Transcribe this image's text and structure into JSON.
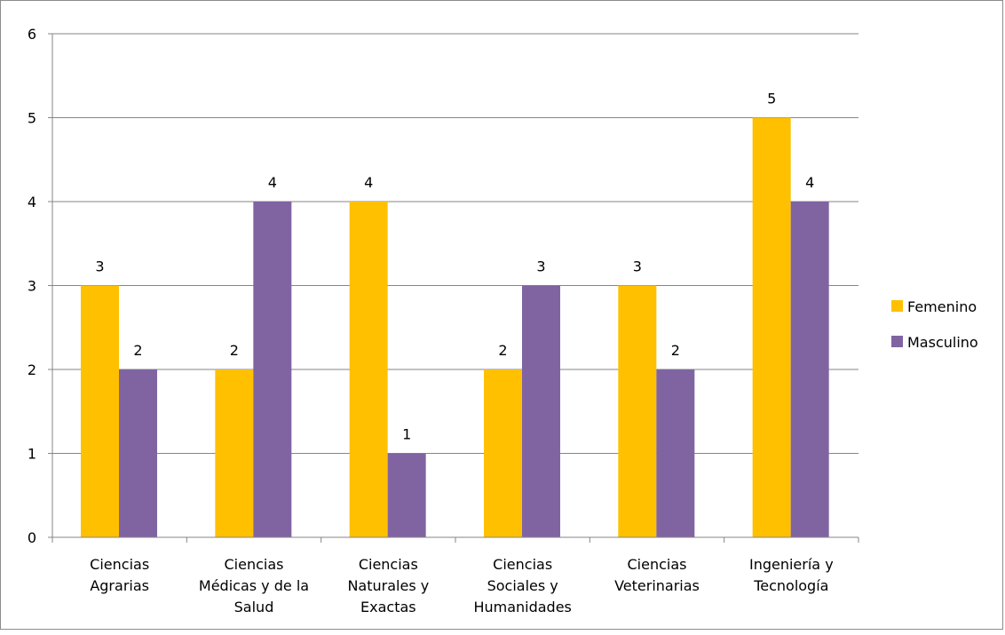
{
  "chart_data": {
    "type": "bar",
    "categories": [
      [
        "Ciencias",
        "Agrarias"
      ],
      [
        "Ciencias",
        "Médicas y de la",
        "Salud"
      ],
      [
        "Ciencias",
        "Naturales y",
        "Exactas"
      ],
      [
        "Ciencias",
        "Sociales y",
        "Humanidades"
      ],
      [
        "Ciencias",
        "Veterinarias"
      ],
      [
        "Ingeniería y",
        "Tecnología"
      ]
    ],
    "series": [
      {
        "name": "Femenino",
        "color": "#FFC000",
        "values": [
          3,
          2,
          4,
          2,
          3,
          5
        ]
      },
      {
        "name": "Masculino",
        "color": "#8064A2",
        "values": [
          2,
          4,
          1,
          3,
          2,
          4
        ]
      }
    ],
    "ylim": [
      0,
      6
    ],
    "yticks": [
      "0",
      "1",
      "2",
      "3",
      "4",
      "5",
      "6"
    ],
    "grid": true,
    "data_labels": true,
    "legend_position": "right"
  }
}
